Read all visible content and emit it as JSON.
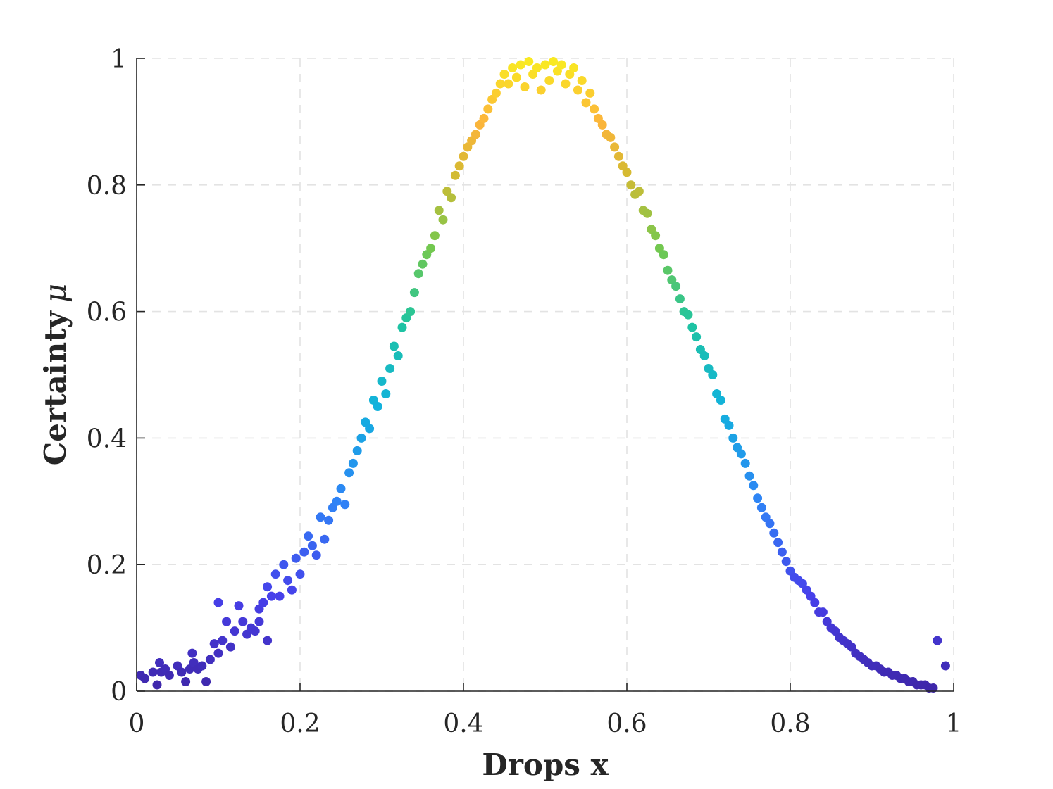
{
  "chart_data": {
    "type": "scatter",
    "title": "",
    "xlabel": "Drops x",
    "ylabel_text": "Certainty",
    "ylabel_symbol": "μ",
    "xlim": [
      0,
      1
    ],
    "ylim": [
      0,
      1
    ],
    "x_ticks": [
      "0",
      "0.2",
      "0.4",
      "0.6",
      "0.8",
      "1"
    ],
    "y_ticks": [
      "0",
      "0.2",
      "0.4",
      "0.6",
      "0.8",
      "1"
    ],
    "grid": true,
    "grid_style": "dashed",
    "colormap": "parula",
    "color_by": "y",
    "series": [
      {
        "x": [
          0.005,
          0.01,
          0.02,
          0.025,
          0.028,
          0.03,
          0.035,
          0.04,
          0.05,
          0.055,
          0.06,
          0.065,
          0.068,
          0.07,
          0.075,
          0.08,
          0.085,
          0.09,
          0.095,
          0.1,
          0.1,
          0.105,
          0.11,
          0.115,
          0.12,
          0.125,
          0.13,
          0.135,
          0.14,
          0.145,
          0.15,
          0.15,
          0.155,
          0.16,
          0.16,
          0.165,
          0.17,
          0.175,
          0.18,
          0.185,
          0.19,
          0.195,
          0.2,
          0.205,
          0.21,
          0.215,
          0.22,
          0.225,
          0.23,
          0.235,
          0.24,
          0.245,
          0.25,
          0.255,
          0.26,
          0.265,
          0.27,
          0.275,
          0.28,
          0.285,
          0.29,
          0.295,
          0.3,
          0.305,
          0.31,
          0.315,
          0.32,
          0.325,
          0.33,
          0.335,
          0.34,
          0.345,
          0.35,
          0.355,
          0.36,
          0.365,
          0.37,
          0.375,
          0.38,
          0.385,
          0.39,
          0.395,
          0.4,
          0.405,
          0.41,
          0.415,
          0.42,
          0.425,
          0.43,
          0.435,
          0.44,
          0.445,
          0.45,
          0.455,
          0.46,
          0.465,
          0.47,
          0.475,
          0.48,
          0.485,
          0.49,
          0.495,
          0.5,
          0.505,
          0.51,
          0.515,
          0.52,
          0.525,
          0.53,
          0.535,
          0.54,
          0.545,
          0.55,
          0.555,
          0.56,
          0.565,
          0.57,
          0.575,
          0.58,
          0.585,
          0.59,
          0.595,
          0.6,
          0.605,
          0.61,
          0.615,
          0.62,
          0.625,
          0.63,
          0.635,
          0.64,
          0.645,
          0.65,
          0.655,
          0.66,
          0.665,
          0.67,
          0.675,
          0.68,
          0.685,
          0.69,
          0.695,
          0.7,
          0.705,
          0.71,
          0.715,
          0.72,
          0.725,
          0.73,
          0.735,
          0.74,
          0.745,
          0.75,
          0.755,
          0.76,
          0.765,
          0.77,
          0.775,
          0.78,
          0.785,
          0.79,
          0.795,
          0.8,
          0.805,
          0.81,
          0.815,
          0.82,
          0.825,
          0.83,
          0.835,
          0.84,
          0.845,
          0.85,
          0.855,
          0.86,
          0.865,
          0.87,
          0.875,
          0.88,
          0.885,
          0.89,
          0.895,
          0.9,
          0.905,
          0.91,
          0.915,
          0.92,
          0.925,
          0.93,
          0.935,
          0.94,
          0.945,
          0.95,
          0.955,
          0.96,
          0.965,
          0.97,
          0.975,
          0.98,
          0.99
        ],
        "y": [
          0.025,
          0.02,
          0.03,
          0.01,
          0.045,
          0.03,
          0.035,
          0.025,
          0.04,
          0.03,
          0.015,
          0.035,
          0.06,
          0.045,
          0.035,
          0.04,
          0.015,
          0.05,
          0.075,
          0.06,
          0.14,
          0.08,
          0.11,
          0.07,
          0.095,
          0.135,
          0.11,
          0.09,
          0.1,
          0.095,
          0.11,
          0.13,
          0.14,
          0.08,
          0.165,
          0.15,
          0.185,
          0.15,
          0.2,
          0.175,
          0.16,
          0.21,
          0.185,
          0.22,
          0.245,
          0.23,
          0.215,
          0.275,
          0.24,
          0.27,
          0.29,
          0.3,
          0.32,
          0.295,
          0.345,
          0.36,
          0.38,
          0.4,
          0.425,
          0.415,
          0.46,
          0.45,
          0.49,
          0.47,
          0.51,
          0.545,
          0.53,
          0.575,
          0.59,
          0.6,
          0.63,
          0.66,
          0.675,
          0.69,
          0.7,
          0.72,
          0.76,
          0.745,
          0.79,
          0.78,
          0.815,
          0.83,
          0.845,
          0.86,
          0.87,
          0.88,
          0.895,
          0.905,
          0.92,
          0.935,
          0.945,
          0.96,
          0.975,
          0.96,
          0.985,
          0.97,
          0.99,
          0.955,
          0.995,
          0.975,
          0.985,
          0.95,
          0.99,
          0.965,
          0.995,
          0.98,
          0.99,
          0.96,
          0.975,
          0.985,
          0.95,
          0.965,
          0.93,
          0.945,
          0.92,
          0.905,
          0.895,
          0.88,
          0.875,
          0.86,
          0.845,
          0.83,
          0.82,
          0.8,
          0.785,
          0.79,
          0.76,
          0.755,
          0.73,
          0.72,
          0.7,
          0.69,
          0.665,
          0.65,
          0.64,
          0.62,
          0.6,
          0.595,
          0.575,
          0.56,
          0.54,
          0.53,
          0.51,
          0.5,
          0.47,
          0.46,
          0.43,
          0.42,
          0.4,
          0.385,
          0.375,
          0.36,
          0.34,
          0.325,
          0.305,
          0.29,
          0.275,
          0.265,
          0.25,
          0.235,
          0.22,
          0.205,
          0.19,
          0.18,
          0.175,
          0.17,
          0.16,
          0.15,
          0.14,
          0.125,
          0.125,
          0.11,
          0.1,
          0.095,
          0.085,
          0.08,
          0.075,
          0.07,
          0.06,
          0.055,
          0.05,
          0.045,
          0.04,
          0.04,
          0.035,
          0.03,
          0.03,
          0.025,
          0.025,
          0.02,
          0.02,
          0.015,
          0.015,
          0.01,
          0.01,
          0.01,
          0.005,
          0.005,
          0.08,
          0.04
        ]
      }
    ]
  }
}
